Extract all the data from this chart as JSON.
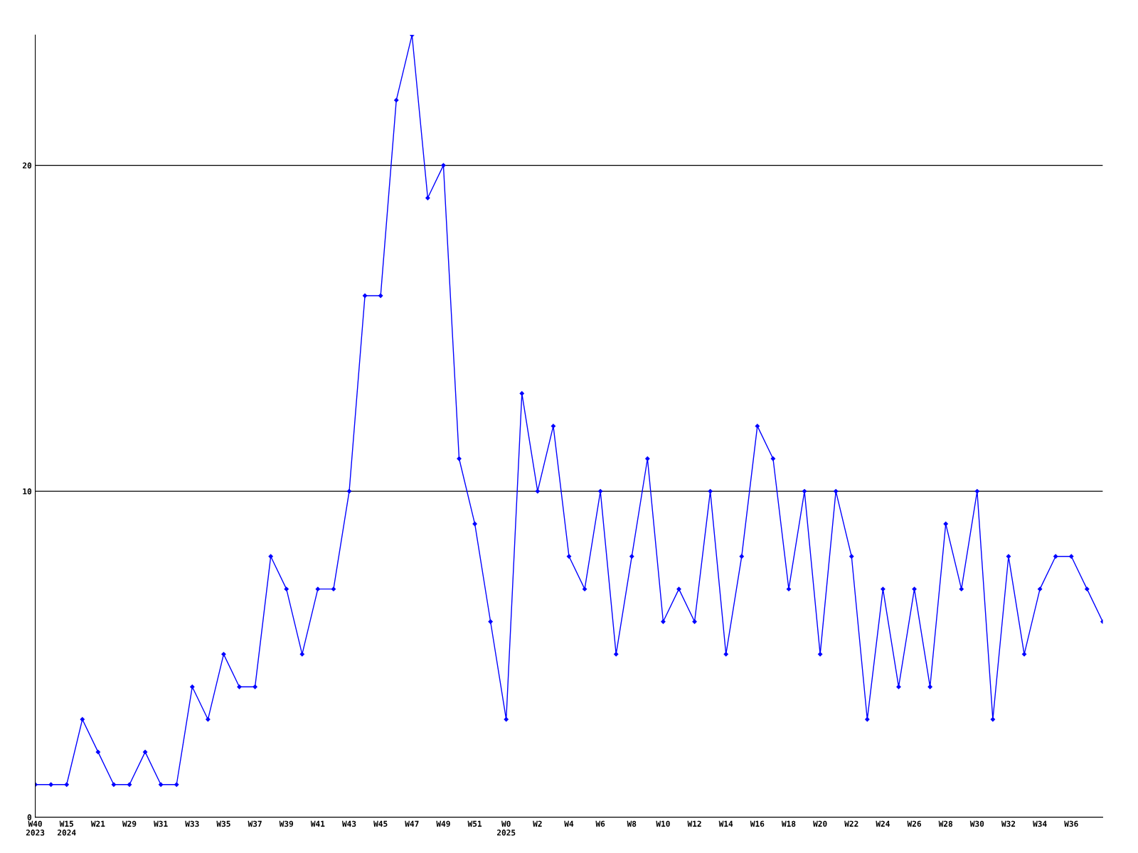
{
  "chart_data": {
    "type": "line",
    "categories": [
      "W40\n2023",
      null,
      "W15\n2024",
      null,
      "W21",
      null,
      "W29",
      null,
      "W31",
      null,
      "W33",
      null,
      "W35",
      null,
      "W37",
      null,
      "W39",
      null,
      "W41",
      null,
      "W43",
      null,
      "W45",
      null,
      "W47",
      null,
      "W49",
      null,
      "W51",
      null,
      "W0\n2025",
      null,
      "W2",
      null,
      "W4",
      null,
      "W6",
      null,
      "W8",
      null,
      "W10",
      null,
      "W12",
      null,
      "W14",
      null,
      "W16",
      null,
      "W18",
      null,
      "W20",
      null,
      "W22",
      null,
      "W24",
      null,
      "W26",
      null,
      "W28",
      null,
      "W30",
      null,
      "W32",
      null,
      "W34",
      null,
      "W36",
      null,
      null
    ],
    "series": [
      {
        "color": "#0000ff",
        "values": [
          1,
          1,
          1,
          3,
          2,
          1,
          1,
          2,
          1,
          1,
          4,
          3,
          5,
          4,
          4,
          8,
          7,
          5,
          7,
          7,
          10,
          16,
          16,
          22,
          24,
          19,
          20,
          11,
          9,
          6,
          3,
          13,
          10,
          12,
          8,
          7,
          10,
          5,
          8,
          11,
          6,
          7,
          6,
          10,
          5,
          8,
          12,
          11,
          7,
          10,
          5,
          10,
          8,
          3,
          7,
          4,
          7,
          4,
          9,
          7,
          10,
          3,
          8,
          5,
          7,
          8,
          8,
          7,
          6
        ]
      }
    ],
    "ylim": [
      0,
      24
    ],
    "yticks": [
      0,
      10,
      20
    ],
    "grid": "y",
    "marker": "diamond",
    "line_style": "solid"
  }
}
